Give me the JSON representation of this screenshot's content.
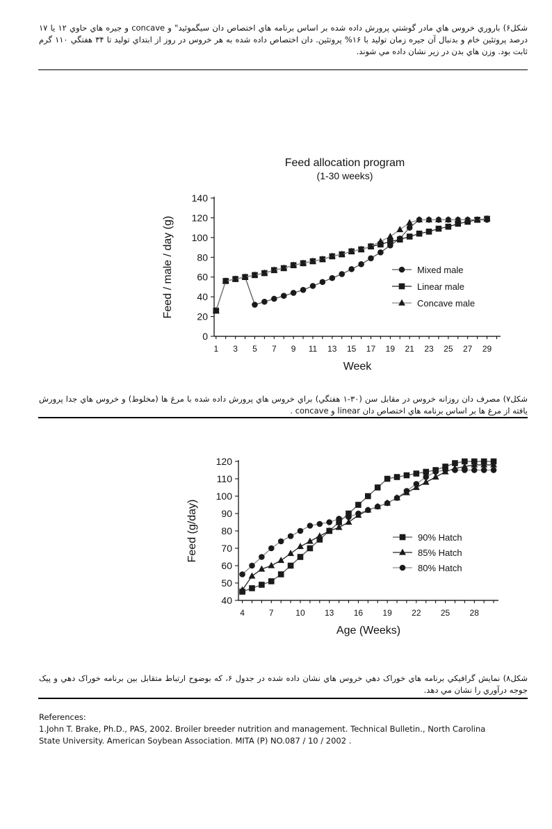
{
  "captions": {
    "fig6": "شکل۶) باروري خروس هاي مادر گوشتي پرورش داده شده بر اساس برنامه هاي اختصاص دان سيگموئيد\" و concave و جيره هاي حاوي ۱۲ يا ۱۷ درصد پروتئين خام و بدنبال آن جيره زمان توليد با ۱۶% پروتئين. دان اختصاص داده شده به هر خروس در روز از ابتداي توليد تا ۳۴ هفتگي ۱۱۰ گرم ثابت بود. وزن هاي بدن در زير نشان داده مي شوند.",
    "fig7": "شکل۷) مصرف دان روزانه خروس در مقابل سن (۳۰-۱ هفتگي) براي خروس هاي پرورش داده شده با مرغ ها (مخلوط) و خروس هاي جدا پرورش يافته از مرغ ها بر اساس برنامه هاي اختصاص دان linear و concave .",
    "fig8": "شکل۸) نمايش گرافيکي برنامه هاي خوراک دهي خروس هاي نشان داده شده در جدول ۶، که بوضوح ارتباط متقابل بين برنامه خوراک دهي و پيک جوجه درآوري را نشان مي دهد."
  },
  "references": {
    "heading": "References:",
    "line1": "1.John T. Brake, Ph.D., PAS, 2002. Broiler breeder nutrition and management. Technical Bulletin., North Carolina",
    "line2": "State University. American Soybean Association. MITA (P) NO.087 / 10 / 2002 ."
  },
  "chart_data": [
    {
      "type": "line",
      "title": "Feed allocation program",
      "subtitle": "(1-30 weeks)",
      "xlabel": "Week",
      "ylabel": "Feed / male / day (g)",
      "xlim": [
        0.8,
        30.4
      ],
      "ylim": [
        0,
        140
      ],
      "xticks": [
        1,
        3,
        5,
        7,
        9,
        11,
        13,
        15,
        17,
        19,
        21,
        23,
        25,
        27,
        29
      ],
      "yticks": [
        0,
        20,
        40,
        60,
        80,
        100,
        120,
        140
      ],
      "legend": "right",
      "series": [
        {
          "name": "Mixed male",
          "marker": "circle",
          "points": [
            [
              1,
              26
            ],
            [
              2,
              56
            ],
            [
              3,
              58
            ],
            [
              4,
              60
            ],
            [
              5,
              32
            ],
            [
              6,
              35
            ],
            [
              7,
              38
            ],
            [
              8,
              41
            ],
            [
              9,
              44
            ],
            [
              10,
              47
            ],
            [
              11,
              51
            ],
            [
              12,
              55
            ],
            [
              13,
              59
            ],
            [
              14,
              63
            ],
            [
              15,
              68
            ],
            [
              16,
              73
            ],
            [
              17,
              79
            ],
            [
              18,
              85
            ],
            [
              19,
              92
            ],
            [
              20,
              99
            ],
            [
              21,
              110
            ],
            [
              22,
              118
            ],
            [
              23,
              118
            ],
            [
              24,
              118
            ],
            [
              25,
              118
            ],
            [
              26,
              118
            ],
            [
              27,
              118
            ],
            [
              28,
              118
            ],
            [
              29,
              118
            ]
          ]
        },
        {
          "name": "Linear male",
          "marker": "square",
          "points": [
            [
              1,
              26
            ],
            [
              2,
              56
            ],
            [
              3,
              58
            ],
            [
              4,
              60
            ],
            [
              5,
              62
            ],
            [
              6,
              64
            ],
            [
              7,
              67
            ],
            [
              8,
              69
            ],
            [
              9,
              72
            ],
            [
              10,
              74
            ],
            [
              11,
              76
            ],
            [
              12,
              78
            ],
            [
              13,
              81
            ],
            [
              14,
              83
            ],
            [
              15,
              86
            ],
            [
              16,
              88
            ],
            [
              17,
              91
            ],
            [
              18,
              93
            ],
            [
              19,
              96
            ],
            [
              20,
              98
            ],
            [
              21,
              101
            ],
            [
              22,
              104
            ],
            [
              23,
              106
            ],
            [
              24,
              109
            ],
            [
              25,
              111
            ],
            [
              26,
              114
            ],
            [
              27,
              116
            ],
            [
              28,
              118
            ],
            [
              29,
              119
            ]
          ]
        },
        {
          "name": "Concave male",
          "marker": "triangle",
          "points": [
            [
              1,
              26
            ],
            [
              2,
              56
            ],
            [
              3,
              58
            ],
            [
              4,
              60
            ],
            [
              5,
              62
            ],
            [
              6,
              64
            ],
            [
              7,
              67
            ],
            [
              8,
              69
            ],
            [
              9,
              72
            ],
            [
              10,
              74
            ],
            [
              11,
              76
            ],
            [
              12,
              78
            ],
            [
              13,
              81
            ],
            [
              14,
              83
            ],
            [
              15,
              86
            ],
            [
              16,
              88
            ],
            [
              17,
              91
            ],
            [
              18,
              96
            ],
            [
              19,
              101
            ],
            [
              20,
              108
            ],
            [
              21,
              115
            ],
            [
              22,
              118
            ],
            [
              23,
              118
            ],
            [
              24,
              118
            ],
            [
              25,
              118
            ],
            [
              26,
              118
            ],
            [
              27,
              118
            ],
            [
              28,
              118
            ],
            [
              29,
              119
            ]
          ]
        }
      ]
    },
    {
      "type": "line",
      "xlabel": "Age (Weeks)",
      "ylabel": "Feed (g/day)",
      "xlim": [
        3.6,
        30.5
      ],
      "ylim": [
        40,
        120
      ],
      "xticks": [
        4,
        7,
        10,
        13,
        16,
        19,
        22,
        25,
        28
      ],
      "yticks": [
        40,
        50,
        60,
        70,
        80,
        90,
        100,
        110,
        120
      ],
      "legend": "right",
      "series": [
        {
          "name": "90% Hatch",
          "marker": "square",
          "points": [
            [
              4,
              45
            ],
            [
              5,
              47
            ],
            [
              6,
              49
            ],
            [
              7,
              51
            ],
            [
              8,
              55
            ],
            [
              9,
              60
            ],
            [
              10,
              65
            ],
            [
              11,
              70
            ],
            [
              12,
              75
            ],
            [
              13,
              80
            ],
            [
              14,
              85
            ],
            [
              15,
              90
            ],
            [
              16,
              95
            ],
            [
              17,
              100
            ],
            [
              18,
              105
            ],
            [
              19,
              110
            ],
            [
              20,
              111
            ],
            [
              21,
              112
            ],
            [
              22,
              113
            ],
            [
              23,
              114
            ],
            [
              24,
              115
            ],
            [
              25,
              117
            ],
            [
              26,
              119
            ],
            [
              27,
              120
            ],
            [
              28,
              120
            ],
            [
              29,
              120
            ],
            [
              30,
              120
            ]
          ]
        },
        {
          "name": "85% Hatch",
          "marker": "triangle",
          "points": [
            [
              4,
              46
            ],
            [
              5,
              54
            ],
            [
              6,
              58
            ],
            [
              7,
              60
            ],
            [
              8,
              63
            ],
            [
              9,
              67
            ],
            [
              10,
              71
            ],
            [
              11,
              74
            ],
            [
              12,
              77
            ],
            [
              13,
              80
            ],
            [
              14,
              82
            ],
            [
              15,
              85
            ],
            [
              16,
              89
            ],
            [
              17,
              92
            ],
            [
              18,
              94
            ],
            [
              19,
              96
            ],
            [
              20,
              99
            ],
            [
              21,
              102
            ],
            [
              22,
              105
            ],
            [
              23,
              108
            ],
            [
              24,
              111
            ],
            [
              25,
              114
            ],
            [
              26,
              116
            ],
            [
              27,
              117
            ],
            [
              28,
              118
            ],
            [
              29,
              118
            ],
            [
              30,
              118
            ]
          ]
        },
        {
          "name": "80% Hatch",
          "marker": "circle",
          "points": [
            [
              4,
              55
            ],
            [
              5,
              60
            ],
            [
              6,
              65
            ],
            [
              7,
              70
            ],
            [
              8,
              74
            ],
            [
              9,
              77
            ],
            [
              10,
              80
            ],
            [
              11,
              83
            ],
            [
              12,
              84
            ],
            [
              13,
              85
            ],
            [
              14,
              87
            ],
            [
              15,
              88
            ],
            [
              16,
              90
            ],
            [
              17,
              92
            ],
            [
              18,
              94
            ],
            [
              19,
              96
            ],
            [
              20,
              99
            ],
            [
              21,
              103
            ],
            [
              22,
              107
            ],
            [
              23,
              111
            ],
            [
              24,
              114
            ],
            [
              25,
              115
            ],
            [
              26,
              115
            ],
            [
              27,
              115
            ],
            [
              28,
              115
            ],
            [
              29,
              115
            ],
            [
              30,
              115
            ]
          ]
        }
      ]
    }
  ]
}
